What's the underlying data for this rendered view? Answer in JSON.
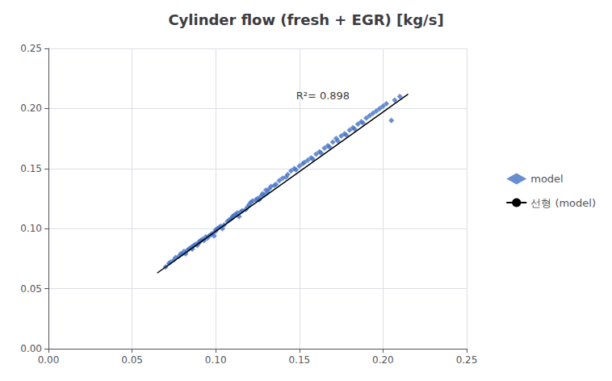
{
  "chart_data": {
    "type": "scatter",
    "title": "Cylinder flow (fresh + EGR) [kg/s]",
    "xlim": [
      0,
      0.25
    ],
    "ylim": [
      0,
      0.25
    ],
    "xticks": [
      {
        "value": 0,
        "label": "0.00"
      },
      {
        "value": 0.05,
        "label": "0.05"
      },
      {
        "value": 0.1,
        "label": "0.10"
      },
      {
        "value": 0.15,
        "label": "0.15"
      },
      {
        "value": 0.2,
        "label": "0.20"
      },
      {
        "value": 0.25,
        "label": "0.25"
      }
    ],
    "yticks": [
      {
        "value": 0,
        "label": "0.00"
      },
      {
        "value": 0.05,
        "label": "0.05"
      },
      {
        "value": 0.1,
        "label": "0.10"
      },
      {
        "value": 0.15,
        "label": "0.15"
      },
      {
        "value": 0.2,
        "label": "0.20"
      },
      {
        "value": 0.25,
        "label": "0.25"
      }
    ],
    "grid": true,
    "legend": "right",
    "series": [
      {
        "name": "model",
        "type": "scatter",
        "marker": "diamond",
        "color": "#4472C4",
        "x": [
          0.07,
          0.072,
          0.073,
          0.075,
          0.076,
          0.078,
          0.079,
          0.08,
          0.081,
          0.082,
          0.083,
          0.084,
          0.085,
          0.086,
          0.086,
          0.087,
          0.088,
          0.089,
          0.09,
          0.09,
          0.091,
          0.092,
          0.093,
          0.094,
          0.095,
          0.096,
          0.097,
          0.098,
          0.099,
          0.1,
          0.1,
          0.101,
          0.102,
          0.103,
          0.104,
          0.105,
          0.107,
          0.108,
          0.109,
          0.11,
          0.11,
          0.111,
          0.112,
          0.113,
          0.114,
          0.115,
          0.116,
          0.118,
          0.119,
          0.12,
          0.121,
          0.122,
          0.124,
          0.125,
          0.126,
          0.127,
          0.128,
          0.129,
          0.13,
          0.131,
          0.132,
          0.133,
          0.135,
          0.136,
          0.138,
          0.14,
          0.142,
          0.143,
          0.145,
          0.147,
          0.148,
          0.15,
          0.152,
          0.153,
          0.155,
          0.157,
          0.158,
          0.16,
          0.162,
          0.163,
          0.165,
          0.167,
          0.168,
          0.17,
          0.172,
          0.173,
          0.175,
          0.177,
          0.178,
          0.18,
          0.182,
          0.183,
          0.185,
          0.187,
          0.188,
          0.19,
          0.192,
          0.194,
          0.196,
          0.198,
          0.2,
          0.202,
          0.205,
          0.207,
          0.21
        ],
        "values": [
          0.068,
          0.071,
          0.072,
          0.074,
          0.076,
          0.077,
          0.079,
          0.079,
          0.081,
          0.079,
          0.082,
          0.083,
          0.084,
          0.085,
          0.083,
          0.086,
          0.087,
          0.086,
          0.089,
          0.088,
          0.09,
          0.091,
          0.09,
          0.093,
          0.092,
          0.094,
          0.095,
          0.096,
          0.094,
          0.098,
          0.099,
          0.1,
          0.101,
          0.102,
          0.1,
          0.103,
          0.106,
          0.107,
          0.108,
          0.109,
          0.11,
          0.111,
          0.112,
          0.113,
          0.11,
          0.114,
          0.115,
          0.116,
          0.118,
          0.12,
          0.122,
          0.123,
          0.124,
          0.125,
          0.124,
          0.127,
          0.129,
          0.128,
          0.132,
          0.13,
          0.133,
          0.135,
          0.136,
          0.137,
          0.14,
          0.142,
          0.143,
          0.145,
          0.148,
          0.15,
          0.149,
          0.152,
          0.154,
          0.155,
          0.157,
          0.159,
          0.158,
          0.162,
          0.164,
          0.163,
          0.167,
          0.169,
          0.168,
          0.172,
          0.175,
          0.173,
          0.177,
          0.179,
          0.178,
          0.182,
          0.184,
          0.183,
          0.187,
          0.189,
          0.188,
          0.192,
          0.194,
          0.196,
          0.198,
          0.2,
          0.202,
          0.204,
          0.19,
          0.207,
          0.21
        ]
      },
      {
        "name": "선형 (model)",
        "type": "line",
        "line_style": "solid",
        "color": "#000000",
        "x": [
          0.065,
          0.215
        ],
        "values": [
          0.063,
          0.212
        ]
      }
    ],
    "annotations": [
      {
        "text": "R²= 0.898",
        "x": 0.148,
        "y": 0.206
      }
    ]
  }
}
